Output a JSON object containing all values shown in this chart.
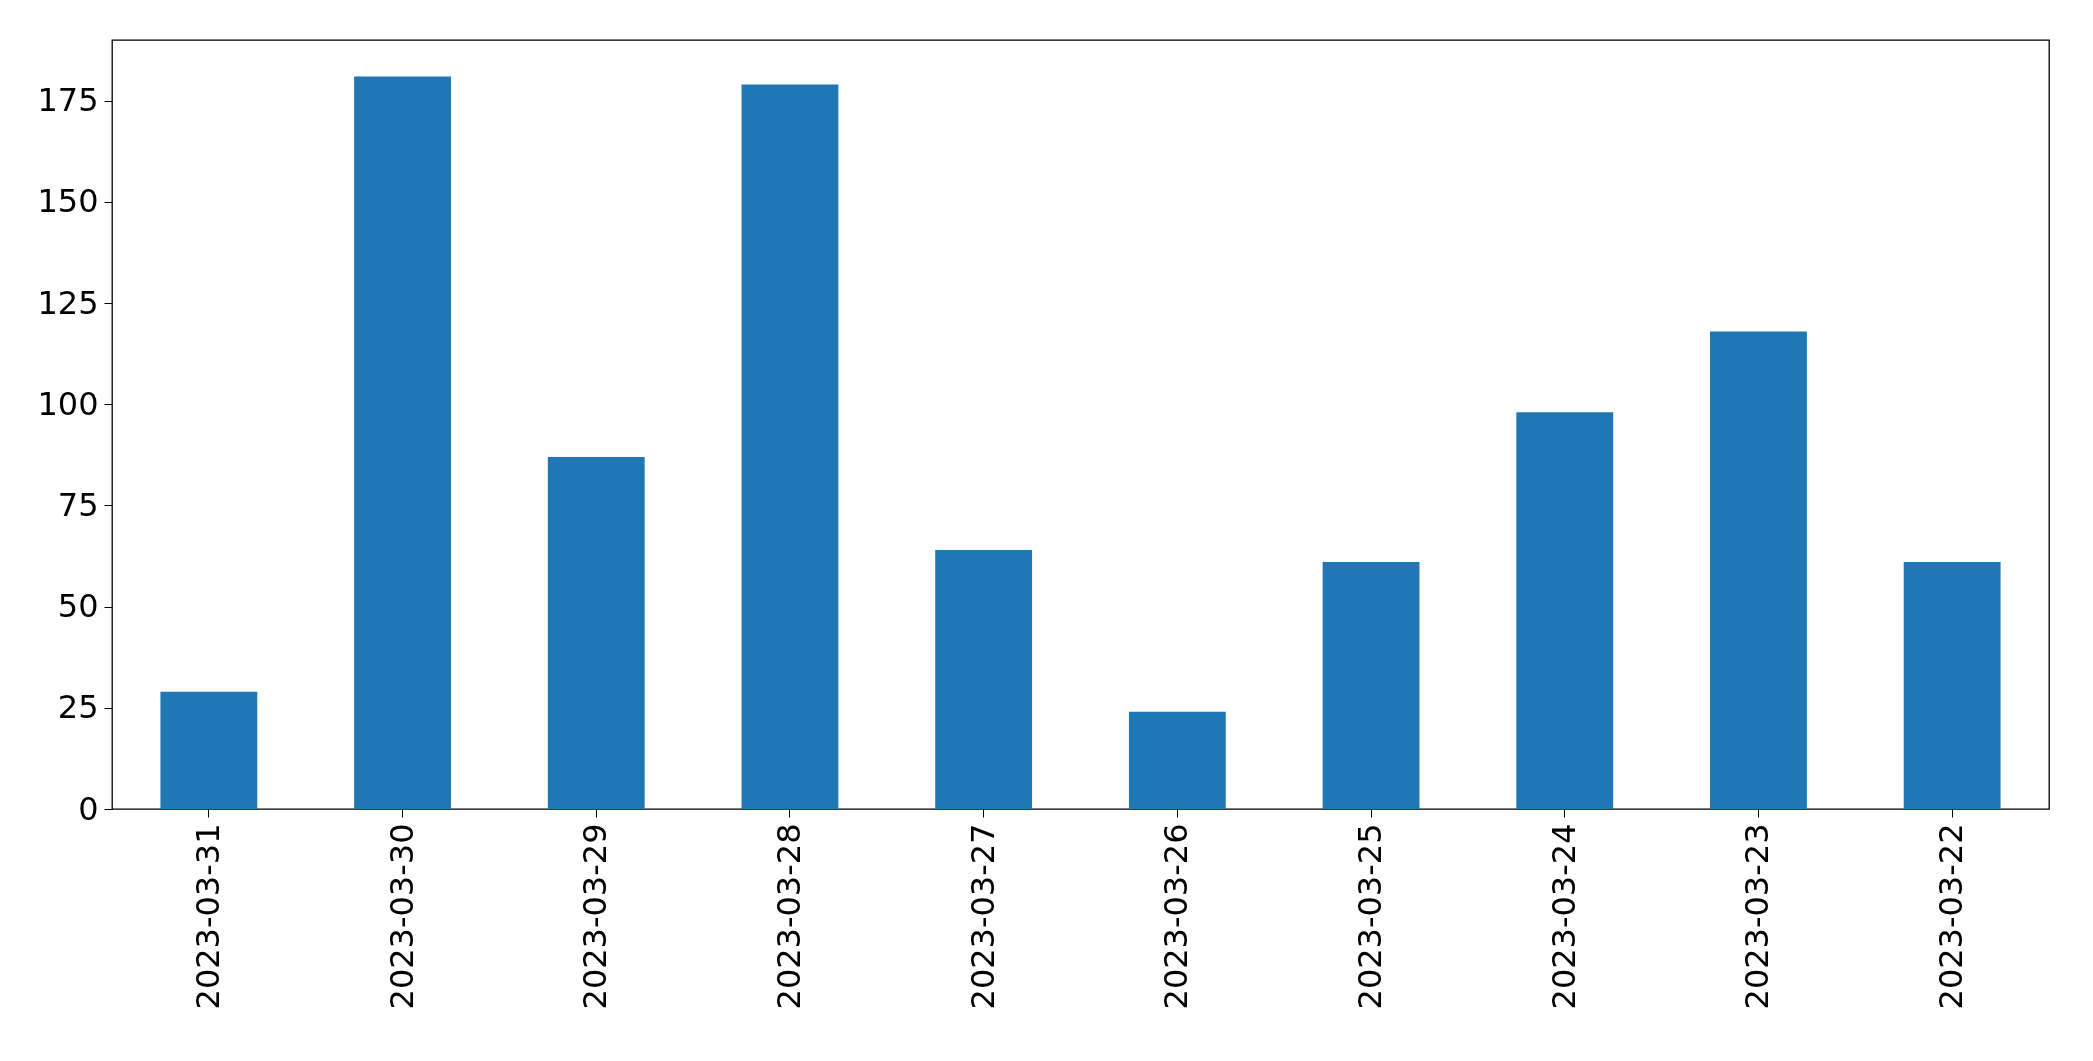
{
  "chart_data": {
    "type": "bar",
    "categories": [
      "2023-03-31",
      "2023-03-30",
      "2023-03-29",
      "2023-03-28",
      "2023-03-27",
      "2023-03-26",
      "2023-03-25",
      "2023-03-24",
      "2023-03-23",
      "2023-03-22"
    ],
    "values": [
      29,
      181,
      87,
      179,
      64,
      24,
      61,
      98,
      118,
      61
    ],
    "color": "#1f77b4",
    "ylim": [
      0,
      190
    ],
    "yticks": [
      0,
      25,
      50,
      75,
      100,
      125,
      150,
      175
    ],
    "grid": false
  }
}
